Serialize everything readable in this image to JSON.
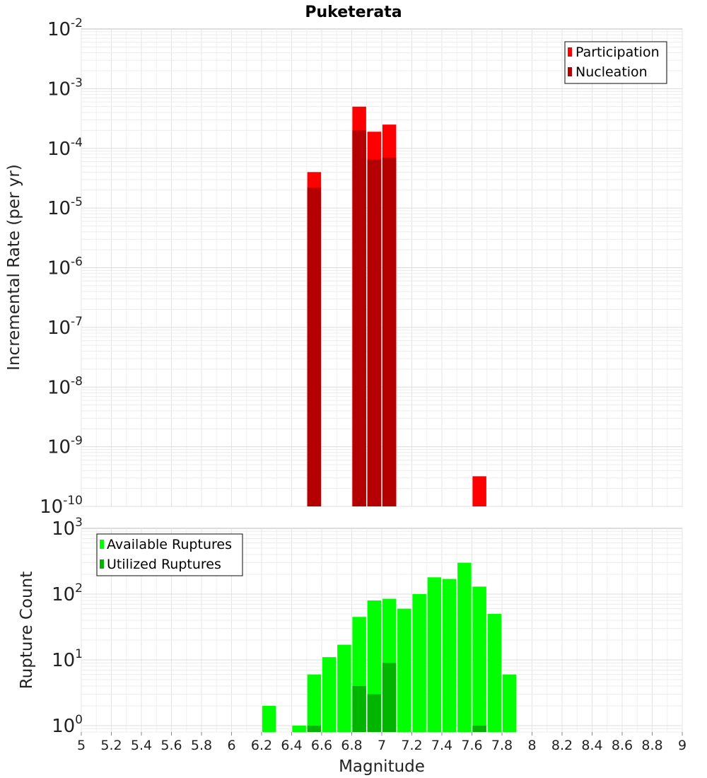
{
  "chart_data": [
    {
      "type": "bar",
      "title": "Puketerata",
      "xlabel": "",
      "ylabel": "Incremental Rate (per yr)",
      "yscale": "log",
      "ylim": [
        1e-10,
        0.01
      ],
      "xlim": [
        5,
        9
      ],
      "y_ticks": [
        {
          "base": "10",
          "exp": "-10"
        },
        {
          "base": "10",
          "exp": "-9"
        },
        {
          "base": "10",
          "exp": "-8"
        },
        {
          "base": "10",
          "exp": "-7"
        },
        {
          "base": "10",
          "exp": "-6"
        },
        {
          "base": "10",
          "exp": "-5"
        },
        {
          "base": "10",
          "exp": "-4"
        },
        {
          "base": "10",
          "exp": "-3"
        },
        {
          "base": "10",
          "exp": "-2"
        }
      ],
      "legend": {
        "position": "top-right",
        "entries": [
          {
            "label": "Participation",
            "color": "#ff0000"
          },
          {
            "label": "Nucleation",
            "color": "#b40000"
          }
        ]
      },
      "series": [
        {
          "name": "Participation",
          "color": "#ff0000",
          "x": [
            6.55,
            6.85,
            6.95,
            7.05,
            7.65
          ],
          "values": [
            4e-05,
            0.0005,
            0.00019,
            0.00025,
            3.2e-10
          ]
        },
        {
          "name": "Nucleation",
          "color": "#b40000",
          "x": [
            6.55,
            6.85,
            6.95,
            7.05
          ],
          "values": [
            2.2e-05,
            0.0002,
            6.5e-05,
            7e-05
          ]
        }
      ]
    },
    {
      "type": "bar",
      "title": "",
      "xlabel": "Magnitude",
      "ylabel": "Rupture Count",
      "yscale": "log",
      "ylim": [
        0.8,
        1000
      ],
      "xlim": [
        5,
        9
      ],
      "x_ticks": [
        "5",
        "5.2",
        "5.4",
        "5.6",
        "5.8",
        "6",
        "6.2",
        "6.4",
        "6.6",
        "6.8",
        "7",
        "7.2",
        "7.4",
        "7.6",
        "7.8",
        "8",
        "8.2",
        "8.4",
        "8.6",
        "8.8",
        "9"
      ],
      "y_ticks": [
        {
          "base": "10",
          "exp": "0",
          "value": 1
        },
        {
          "base": "10",
          "exp": "1",
          "value": 10
        },
        {
          "base": "10",
          "exp": "2",
          "value": 100
        },
        {
          "base": "10",
          "exp": "3",
          "value": 1000
        }
      ],
      "legend": {
        "position": "top-left",
        "entries": [
          {
            "label": "Available Ruptures",
            "color": "#00ff00"
          },
          {
            "label": "Utilized Ruptures",
            "color": "#00b400"
          }
        ]
      },
      "series": [
        {
          "name": "Available Ruptures",
          "color": "#00ff00",
          "x": [
            6.25,
            6.45,
            6.55,
            6.65,
            6.75,
            6.85,
            6.95,
            7.05,
            7.15,
            7.25,
            7.35,
            7.45,
            7.55,
            7.65,
            7.75,
            7.85
          ],
          "values": [
            2,
            1,
            6,
            11,
            17,
            45,
            80,
            85,
            60,
            100,
            180,
            170,
            300,
            130,
            50,
            6
          ]
        },
        {
          "name": "Utilized Ruptures",
          "color": "#00b400",
          "x": [
            6.55,
            6.85,
            6.95,
            7.05,
            7.65
          ],
          "values": [
            1,
            4,
            3,
            9,
            1
          ]
        }
      ]
    }
  ]
}
